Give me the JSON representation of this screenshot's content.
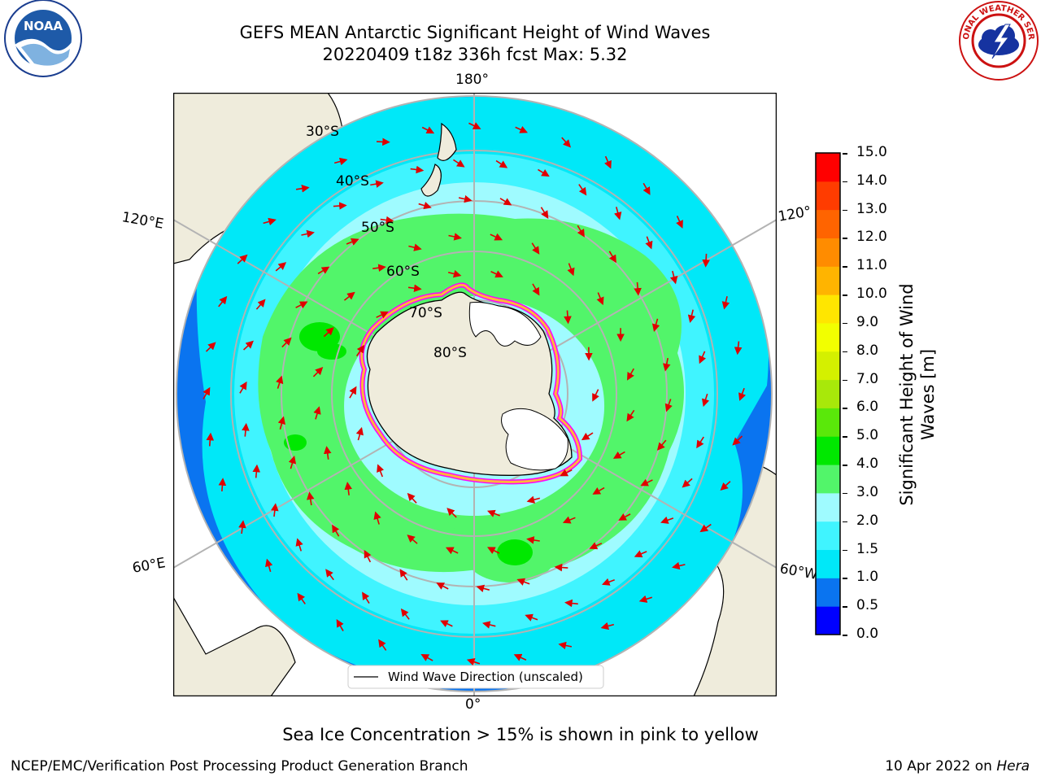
{
  "title": {
    "line1": "GEFS MEAN Antarctic Significant Height of Wind Waves",
    "line2": "20220409 t18z 336h fcst   Max: 5.32"
  },
  "map": {
    "projection": "south-polar-stereographic",
    "longitude_labels": [
      "180°",
      "120°E",
      "120°",
      "60°E",
      "60°W",
      "0°"
    ],
    "latitude_labels": [
      "30°S",
      "40°S",
      "50°S",
      "60°S",
      "70°S",
      "80°S"
    ],
    "legend_entry": "Wind Wave Direction (unscaled)",
    "arrow_color": "#e00000",
    "land_color": "#efecdc",
    "ice_shelf_color": "#ffffff",
    "sea_ice_colors": [
      "#ff00ff",
      "#ffb43c",
      "#ffe699"
    ]
  },
  "colorbar": {
    "label_line1": "Significant Height of Wind",
    "label_line2": "Waves [m]",
    "ticks": [
      "0.0",
      "0.5",
      "1.0",
      "1.5",
      "2.0",
      "3.0",
      "4.0",
      "5.0",
      "6.0",
      "7.0",
      "8.0",
      "9.0",
      "10.0",
      "11.0",
      "12.0",
      "13.0",
      "14.0",
      "15.0"
    ],
    "colors": [
      "#0000ff",
      "#0a74f0",
      "#00e8f8",
      "#40f4ff",
      "#9ffbff",
      "#52f56a",
      "#00e800",
      "#5ae80a",
      "#a8e80a",
      "#d4f000",
      "#f2ff00",
      "#ffe600",
      "#ffb400",
      "#ff8c00",
      "#ff6400",
      "#ff3c00",
      "#ff0000"
    ]
  },
  "note": "Sea Ice Concentration > 15% is shown in pink to yellow",
  "footer": {
    "left": "NCEP/EMC/Verification Post Processing Product Generation Branch",
    "date": "10 Apr 2022 on",
    "machine": "Hera"
  },
  "logos": {
    "noaa_text": "NOAA",
    "nws_text": "NATIONAL WEATHER SERVICE"
  }
}
